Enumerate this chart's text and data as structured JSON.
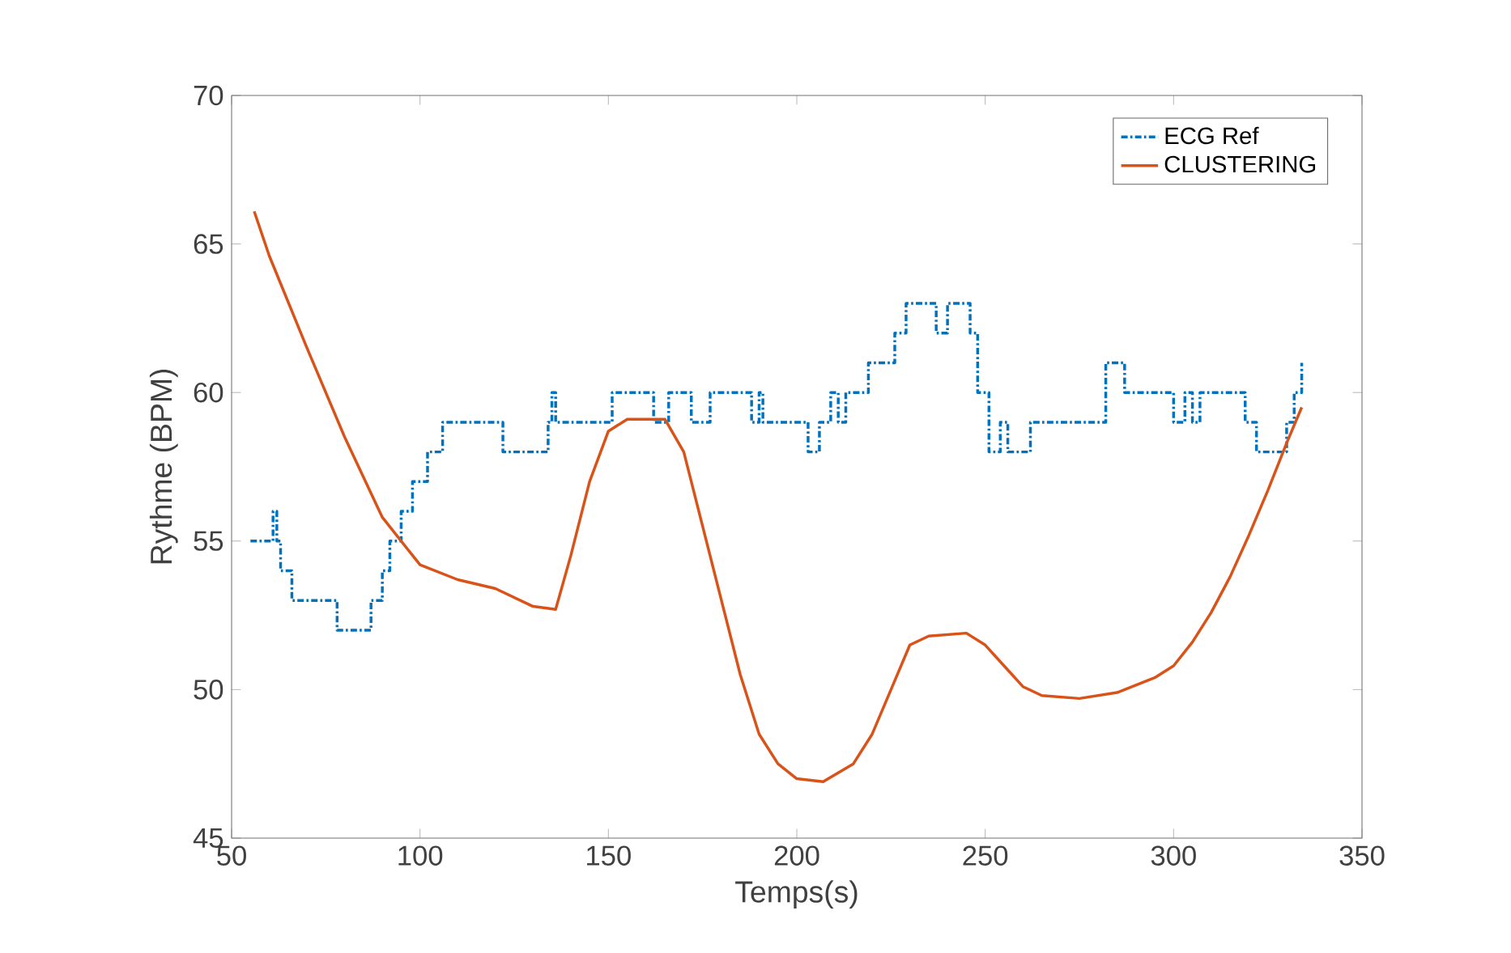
{
  "chart_data": {
    "type": "line",
    "xlabel": "Temps(s)",
    "ylabel": "Rythme (BPM)",
    "xlim": [
      50,
      350
    ],
    "ylim": [
      45,
      70
    ],
    "xticks": [
      50,
      100,
      150,
      200,
      250,
      300,
      350
    ],
    "yticks": [
      45,
      50,
      55,
      60,
      65,
      70
    ],
    "legend": "top right",
    "series": [
      {
        "name": "ECG Ref",
        "type": "step",
        "color": "#0072bd",
        "line_style": "dashed",
        "x": [
          55,
          60,
          61,
          62,
          63,
          66,
          78,
          87,
          90,
          92,
          95,
          98,
          102,
          106,
          122,
          134,
          135,
          136,
          151,
          162,
          166,
          172,
          177,
          188,
          190,
          191,
          203,
          206,
          209,
          211,
          213,
          219,
          226,
          229,
          237,
          240,
          246,
          248,
          251,
          254,
          256,
          262,
          282,
          287,
          300,
          303,
          305,
          307,
          319,
          322,
          330,
          332,
          334
        ],
        "values": [
          55,
          55,
          56,
          55,
          54,
          53,
          52,
          53,
          54,
          55,
          56,
          57,
          58,
          59,
          58,
          59,
          60,
          59,
          60,
          59,
          60,
          59,
          60,
          59,
          60,
          59,
          58,
          59,
          60,
          59,
          60,
          61,
          62,
          63,
          62,
          63,
          62,
          60,
          58,
          59,
          58,
          59,
          61,
          60,
          59,
          60,
          59,
          60,
          59,
          58,
          59,
          60,
          61
        ]
      },
      {
        "name": "CLUSTERING",
        "color": "#d95319",
        "line_style": "solid",
        "x": [
          56,
          60,
          70,
          80,
          90,
          100,
          110,
          120,
          130,
          136,
          140,
          145,
          150,
          155,
          165,
          170,
          175,
          180,
          185,
          190,
          195,
          200,
          207,
          215,
          220,
          225,
          230,
          235,
          245,
          250,
          255,
          260,
          265,
          275,
          285,
          295,
          300,
          305,
          310,
          315,
          320,
          325,
          330,
          334
        ],
        "values": [
          66.1,
          64.6,
          61.5,
          58.5,
          55.8,
          54.2,
          53.7,
          53.4,
          52.8,
          52.7,
          54.5,
          57,
          58.7,
          59.1,
          59.1,
          58,
          55.5,
          53,
          50.5,
          48.5,
          47.5,
          47,
          46.9,
          47.5,
          48.5,
          50,
          51.5,
          51.8,
          51.9,
          51.5,
          50.8,
          50.1,
          49.8,
          49.7,
          49.9,
          50.4,
          50.8,
          51.6,
          52.6,
          53.8,
          55.2,
          56.7,
          58.3,
          59.5
        ]
      }
    ]
  }
}
